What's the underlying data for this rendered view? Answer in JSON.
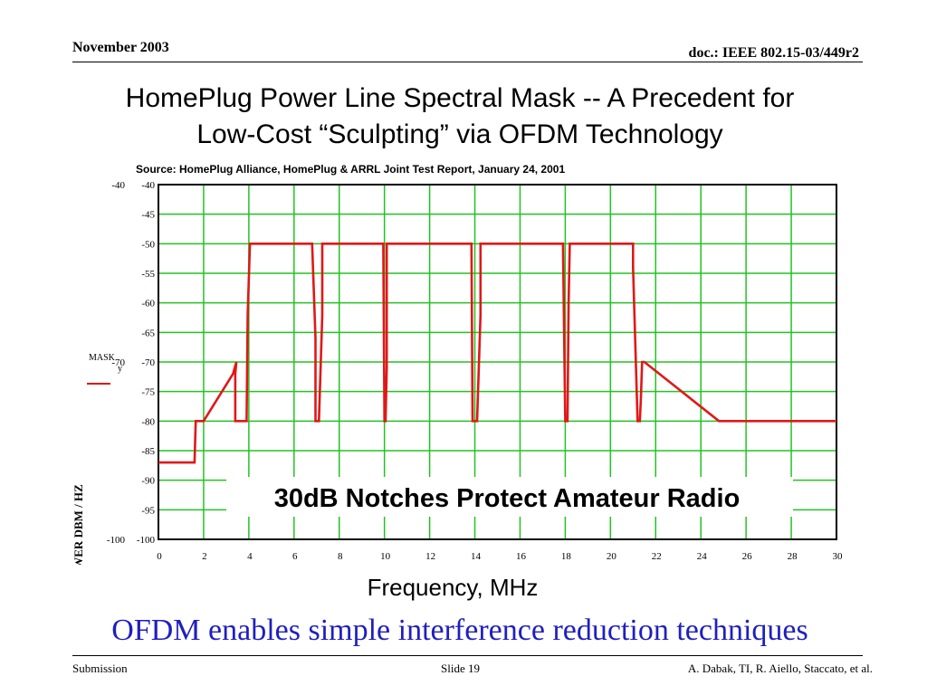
{
  "header": {
    "date": "November 2003",
    "doc_id": "doc.: IEEE 802.15-03/449r2"
  },
  "title_line1": "HomePlug Power Line Spectral Mask -- A Precedent for",
  "title_line2": "Low-Cost “Sculpting” via OFDM Technology",
  "source": "Source: HomePlug Alliance, HomePlug & ARRL Joint Test Report, January 24, 2001",
  "callout": "30dB Notches Protect Amateur Radio",
  "xlabel": "Frequency, MHz",
  "subtitle": "OFDM enables simple interference reduction techniques",
  "footer": {
    "left": "Submission",
    "center": "Slide 19",
    "right": "A. Dabak, TI, R. Aiello, Staccato, et al."
  },
  "chart_data": {
    "type": "line",
    "ylabel": "POWER DBM / HZ",
    "legend": {
      "label": "MASK",
      "sub": "y",
      "placement": "left"
    },
    "xlim": [
      0,
      30
    ],
    "ylim": [
      -100,
      -40
    ],
    "x_ticks": [
      "0",
      "2",
      "4",
      "6",
      "8",
      "10",
      "12",
      "14",
      "16",
      "18",
      "20",
      "22",
      "24",
      "26",
      "28",
      "30"
    ],
    "y_ticks": [
      "-40",
      "-45",
      "-50",
      "-55",
      "-60",
      "-65",
      "-70",
      "-75",
      "-80",
      "-85",
      "-90",
      "-95",
      "-100"
    ],
    "outer_y_ticks": [
      "-40",
      "-70",
      "-100"
    ],
    "grid": true,
    "colors": {
      "grid": "#22c322",
      "line": "#e01818"
    },
    "series": [
      {
        "x": [
          0,
          1.6,
          1.65,
          1.8,
          2.0,
          3.3,
          3.45,
          3.4,
          3.4,
          3.9,
          3.95,
          4.05,
          6.8,
          6.95,
          6.95,
          7.1,
          7.25,
          7.25,
          9.95,
          10.0,
          10.05,
          10.1,
          10.1,
          13.85,
          13.9,
          14.1,
          14.25,
          14.25,
          17.9,
          18.0,
          18.1,
          18.15,
          18.2,
          21.0,
          21.0,
          21.2,
          21.3,
          21.35,
          21.4,
          21.5,
          24.8,
          25.0,
          30.0
        ],
        "y": [
          -87,
          -87,
          -80,
          -80,
          -80,
          -72,
          -70,
          -72,
          -80,
          -80,
          -62,
          -50,
          -50,
          -66,
          -80,
          -80,
          -62,
          -50,
          -50,
          -80,
          -80,
          -71,
          -50,
          -50,
          -80,
          -80,
          -62,
          -50,
          -50,
          -80,
          -80,
          -60,
          -50,
          -50,
          -54,
          -80,
          -80,
          -76,
          -70,
          -70,
          -80,
          -80,
          -80
        ]
      }
    ]
  }
}
